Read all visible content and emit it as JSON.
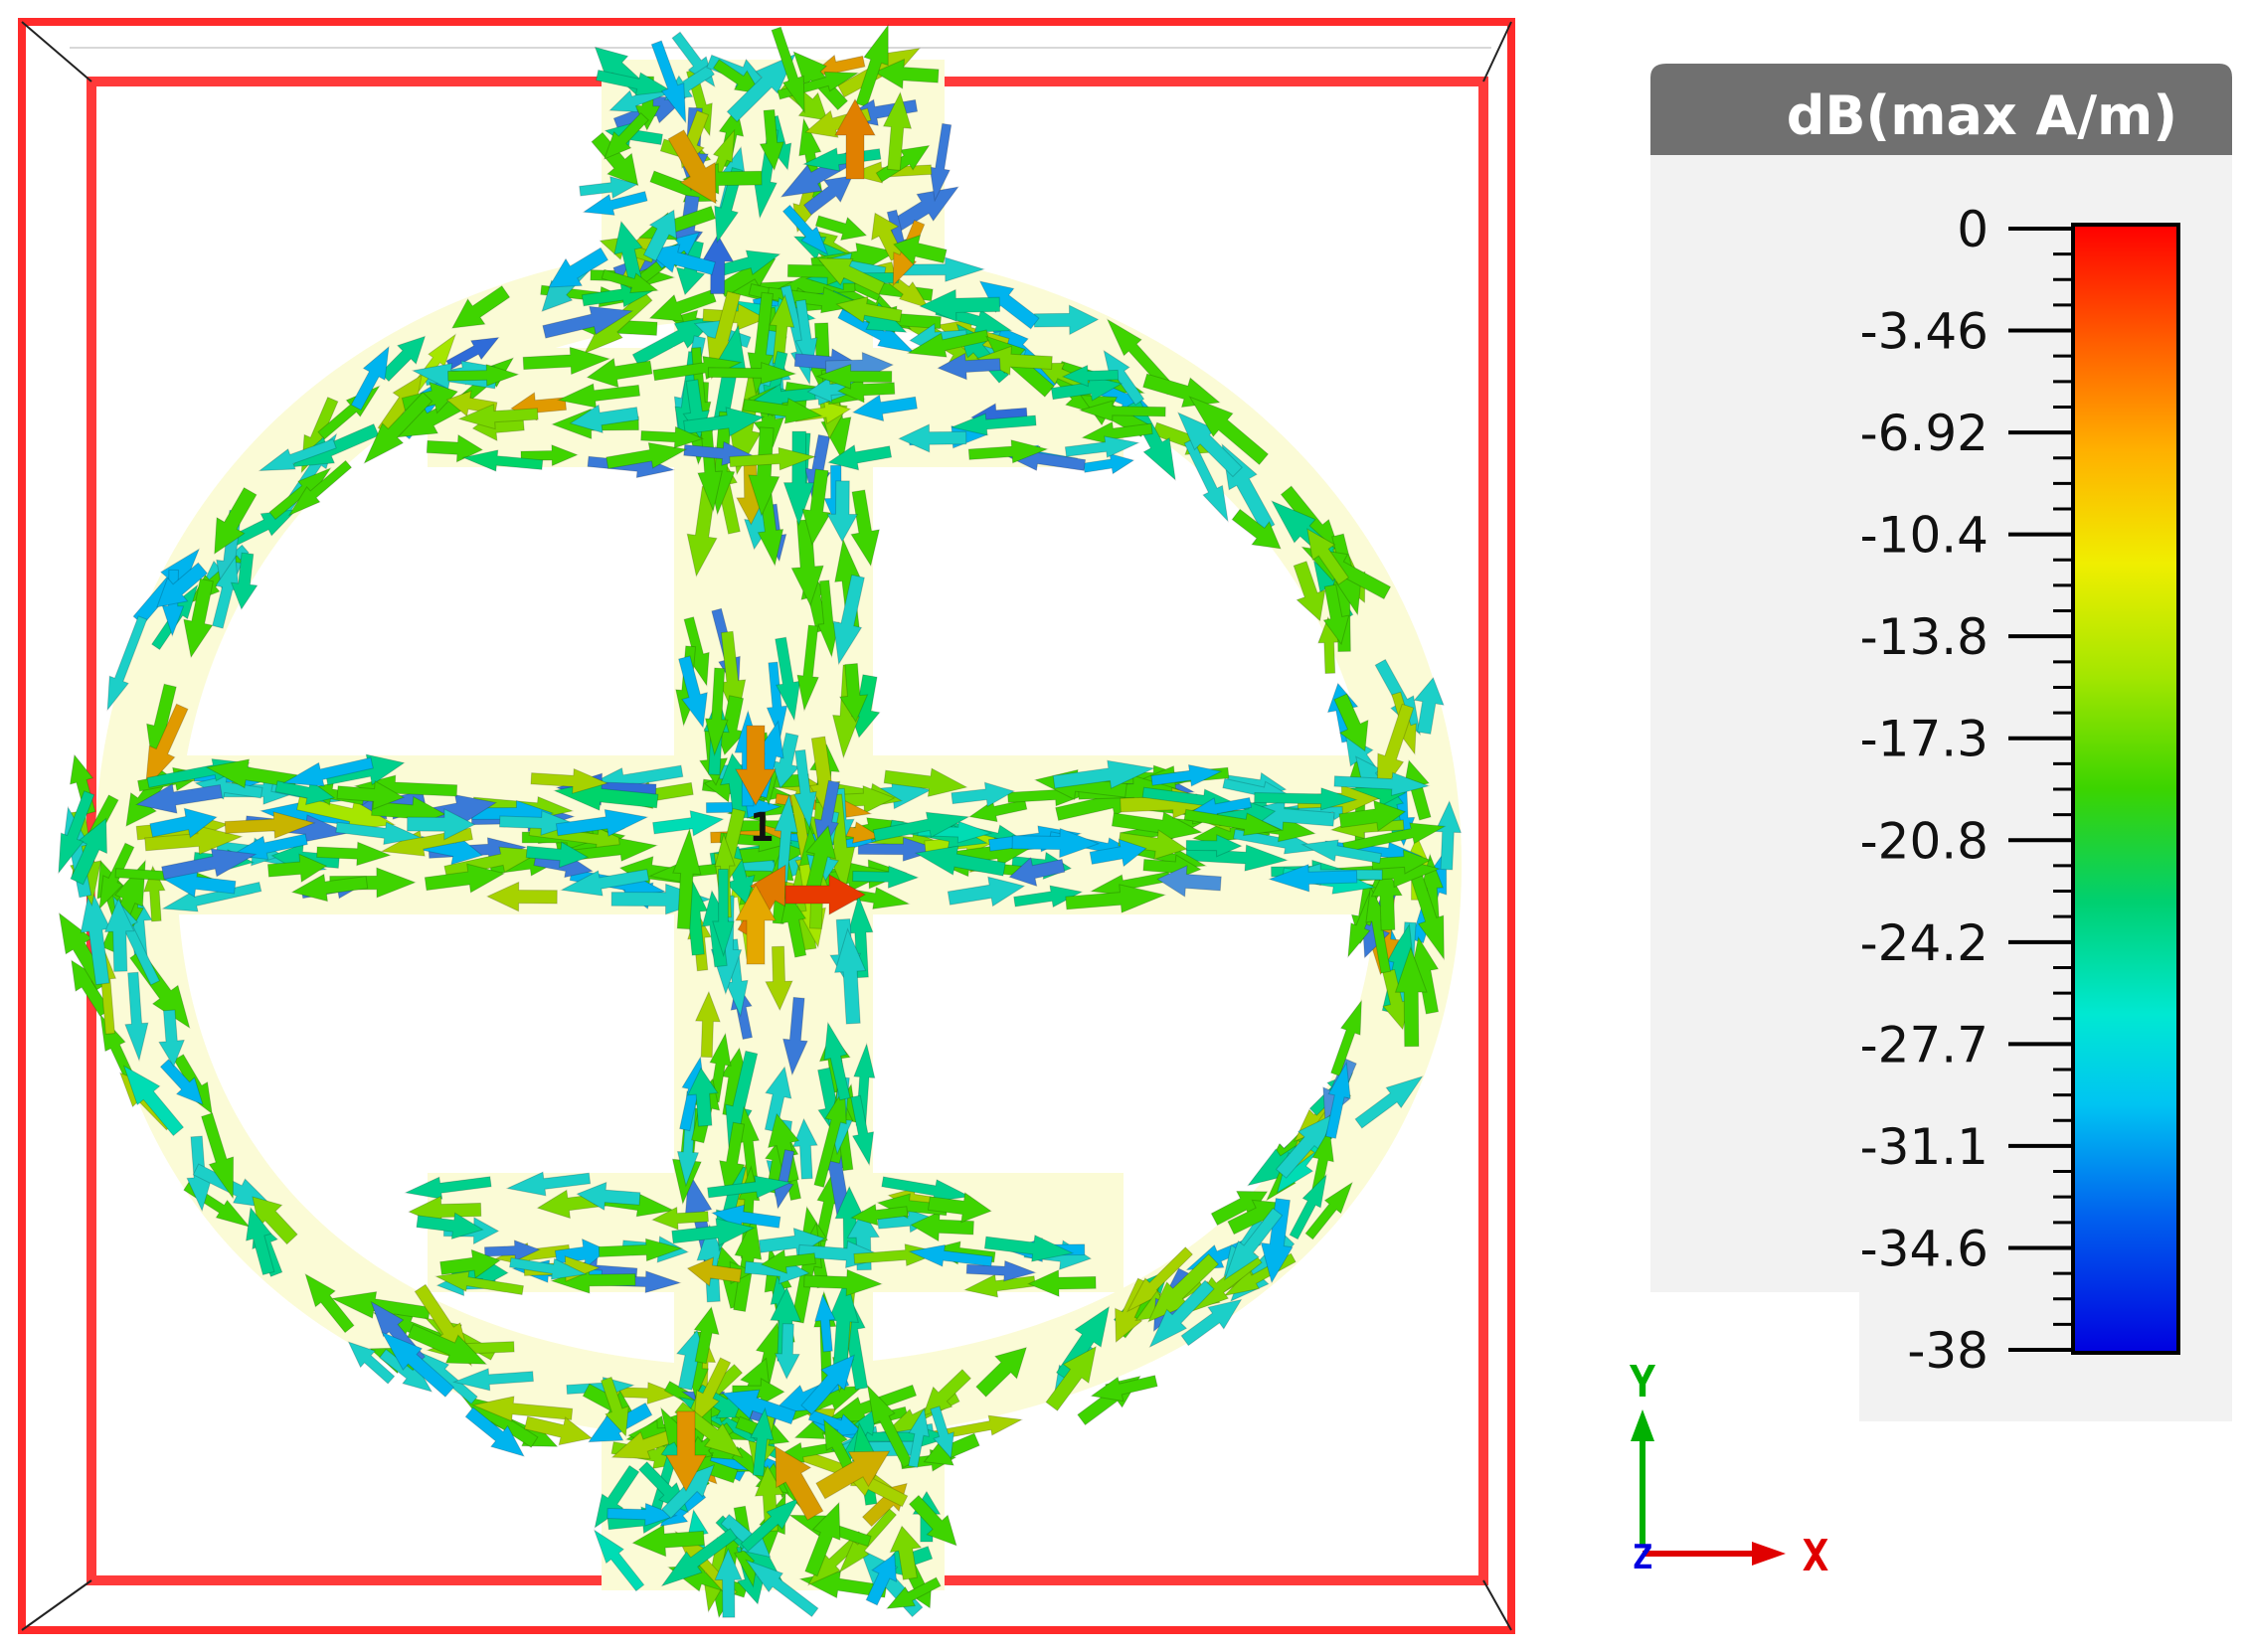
{
  "legend": {
    "title": "dB(max A/m)",
    "ticks": [
      "0",
      "-3.46",
      "-6.92",
      "-10.4",
      "-13.8",
      "-17.3",
      "-20.8",
      "-24.2",
      "-27.7",
      "-31.1",
      "-34.6",
      "-38"
    ],
    "range": [
      0,
      -38
    ],
    "colormap": [
      "#ff0000",
      "#ff6a00",
      "#ffb400",
      "#f0e800",
      "#a6e600",
      "#3fd400",
      "#00d46a",
      "#00e6c8",
      "#00c8f0",
      "#0096f0",
      "#0046f0",
      "#0000e6"
    ]
  },
  "axes": {
    "y": "Y",
    "x": "X",
    "z": "Z",
    "y_color": "#00b000",
    "x_color": "#e00000",
    "z_color": "#0000e0"
  },
  "port_label": "1",
  "colors": {
    "frame": "#ff2a2a",
    "antenna_fill": "#fbfbd6",
    "header_bg": "#707070",
    "panel_bg": "#f2f2f2"
  },
  "icons": {
    "current_arrows": "arrow-glyph"
  }
}
